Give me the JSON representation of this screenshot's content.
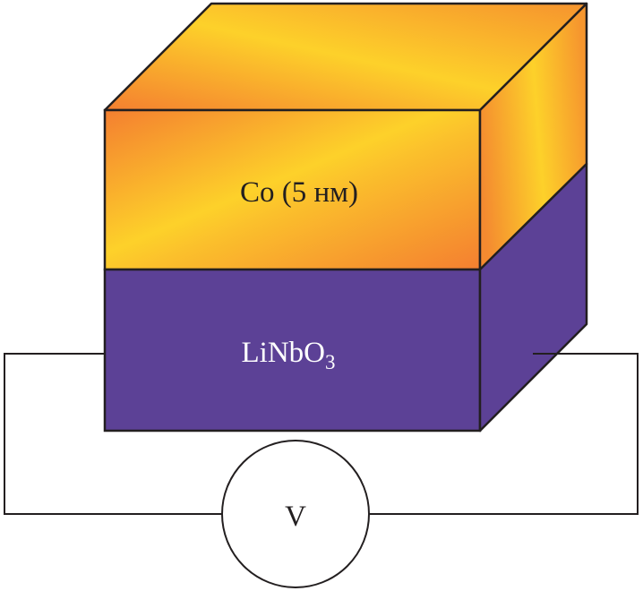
{
  "layers": {
    "top": {
      "label": "Co (5 нм)",
      "color_light": "#fdd12a",
      "color_dark": "#f47f30"
    },
    "bottom": {
      "label_main": "LiNbO",
      "label_sub": "3",
      "color": "#5c4196",
      "text_color": "#ffffff"
    }
  },
  "voltmeter": {
    "label": "V"
  },
  "line_color": "#231f20"
}
